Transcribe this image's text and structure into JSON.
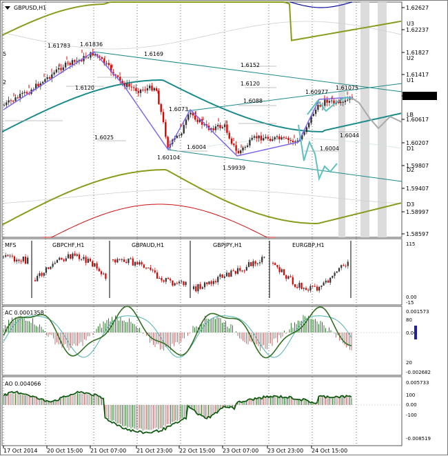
{
  "main_title": "GBPUSD,H1",
  "price_axis": [
    "1.62627",
    "1.62237",
    "1.61827",
    "1.61417",
    "1.61044",
    "1.60617",
    "1.60207",
    "1.59807",
    "1.59407",
    "1.58997",
    "1.58597"
  ],
  "current_price": "1.61044",
  "band_labels": [
    "U3",
    "U2",
    "U1",
    "LB",
    "D1",
    "D2",
    "D3"
  ],
  "peak_labels": [
    "1.61783",
    "1.61836",
    "1.60104",
    "1.59939",
    "1.60977",
    "1.61075"
  ],
  "level_labels": [
    "1.6169",
    "1.6152",
    "1.6120",
    "1.6088",
    "1.6073",
    "1.6120",
    "1.6025",
    "1.6004",
    "1.6004",
    "1.6044"
  ],
  "fibo_marks": [
    "5",
    "2"
  ],
  "multi_pane": {
    "title": "MFS",
    "symbols": [
      "GBPCHF,H1",
      "GBPAUD,H1",
      "GBPJPY,H1",
      "EURGBP,H1"
    ],
    "axis": [
      "115",
      "0.00",
      "-15"
    ]
  },
  "ac_pane": {
    "title": "AC 0.0001358",
    "axis": [
      "0.001573",
      "80",
      "0.00",
      "20",
      "-0.002682"
    ]
  },
  "ao_pane": {
    "title": "AO 0.004066",
    "axis": [
      "0.005733",
      "100",
      "0.00",
      "-100",
      "-0.008519"
    ]
  },
  "time_axis": [
    "17 Oct 2014",
    "20 Oct 15:00",
    "21 Oct 07:00",
    "21 Oct 23:00",
    "22 Oct 15:00",
    "23 Oct 07:00",
    "23 Oct 23:00",
    "24 Oct 15:00"
  ],
  "colors": {
    "bull": "#333333",
    "bear": "#e00000",
    "zigzag": "#7b68ee",
    "teal": "#1b8a8a",
    "olive": "#8a9a1b",
    "band_red": "#d01010",
    "navy": "#1010a0",
    "proj": "#5fbfbf"
  }
}
